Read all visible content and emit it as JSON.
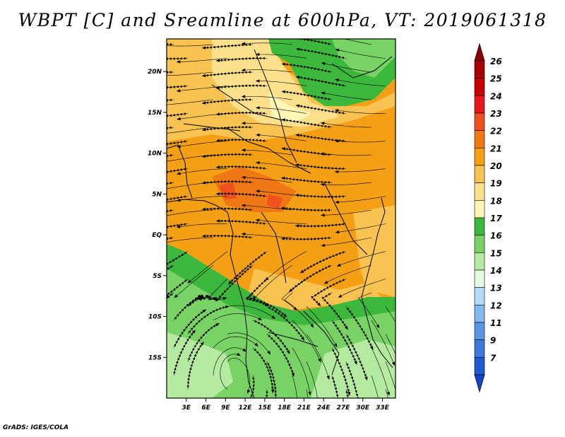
{
  "title": "WBPT [C] and Sreamline at 600hPa, VT: 2019061318",
  "credit": "GrADS: IGES/COLA",
  "map": {
    "lon_range": [
      0,
      35
    ],
    "lat_range": [
      -20,
      24
    ],
    "lat_ticks": [
      {
        "value": 20,
        "label": "20N"
      },
      {
        "value": 15,
        "label": "15N"
      },
      {
        "value": 10,
        "label": "10N"
      },
      {
        "value": 5,
        "label": "5N"
      },
      {
        "value": 0,
        "label": "EQ"
      },
      {
        "value": -5,
        "label": "5S"
      },
      {
        "value": -10,
        "label": "10S"
      },
      {
        "value": -15,
        "label": "15S"
      }
    ],
    "lon_ticks": [
      {
        "value": 3,
        "label": "3E"
      },
      {
        "value": 6,
        "label": "6E"
      },
      {
        "value": 9,
        "label": "9E"
      },
      {
        "value": 12,
        "label": "12E"
      },
      {
        "value": 15,
        "label": "15E"
      },
      {
        "value": 18,
        "label": "18E"
      },
      {
        "value": 21,
        "label": "21E"
      },
      {
        "value": 24,
        "label": "24E"
      },
      {
        "value": 27,
        "label": "27E"
      },
      {
        "value": 30,
        "label": "30E"
      },
      {
        "value": 33,
        "label": "33E"
      }
    ]
  },
  "colorbar": {
    "levels": [
      {
        "label": "26",
        "color": "#a50000"
      },
      {
        "label": "25",
        "color": "#c80000"
      },
      {
        "label": "24",
        "color": "#e41a1a"
      },
      {
        "label": "23",
        "color": "#f0501e"
      },
      {
        "label": "22",
        "color": "#f07814"
      },
      {
        "label": "21",
        "color": "#f5a014"
      },
      {
        "label": "20",
        "color": "#f8c350"
      },
      {
        "label": "19",
        "color": "#fde08c"
      },
      {
        "label": "18",
        "color": "#fff5b4"
      },
      {
        "label": "17",
        "color": "#3cb93c"
      },
      {
        "label": "16",
        "color": "#78d264"
      },
      {
        "label": "15",
        "color": "#b4eba0"
      },
      {
        "label": "14",
        "color": "#e1fae1"
      },
      {
        "label": "13",
        "color": "#b4dcfa"
      },
      {
        "label": "12",
        "color": "#82b9f0"
      },
      {
        "label": "11",
        "color": "#5a96e6"
      },
      {
        "label": "9",
        "color": "#3c78dc"
      },
      {
        "label": "7",
        "color": "#1e5ad2"
      }
    ],
    "top_color": "#8c0000",
    "bottom_color": "#1446c8"
  }
}
